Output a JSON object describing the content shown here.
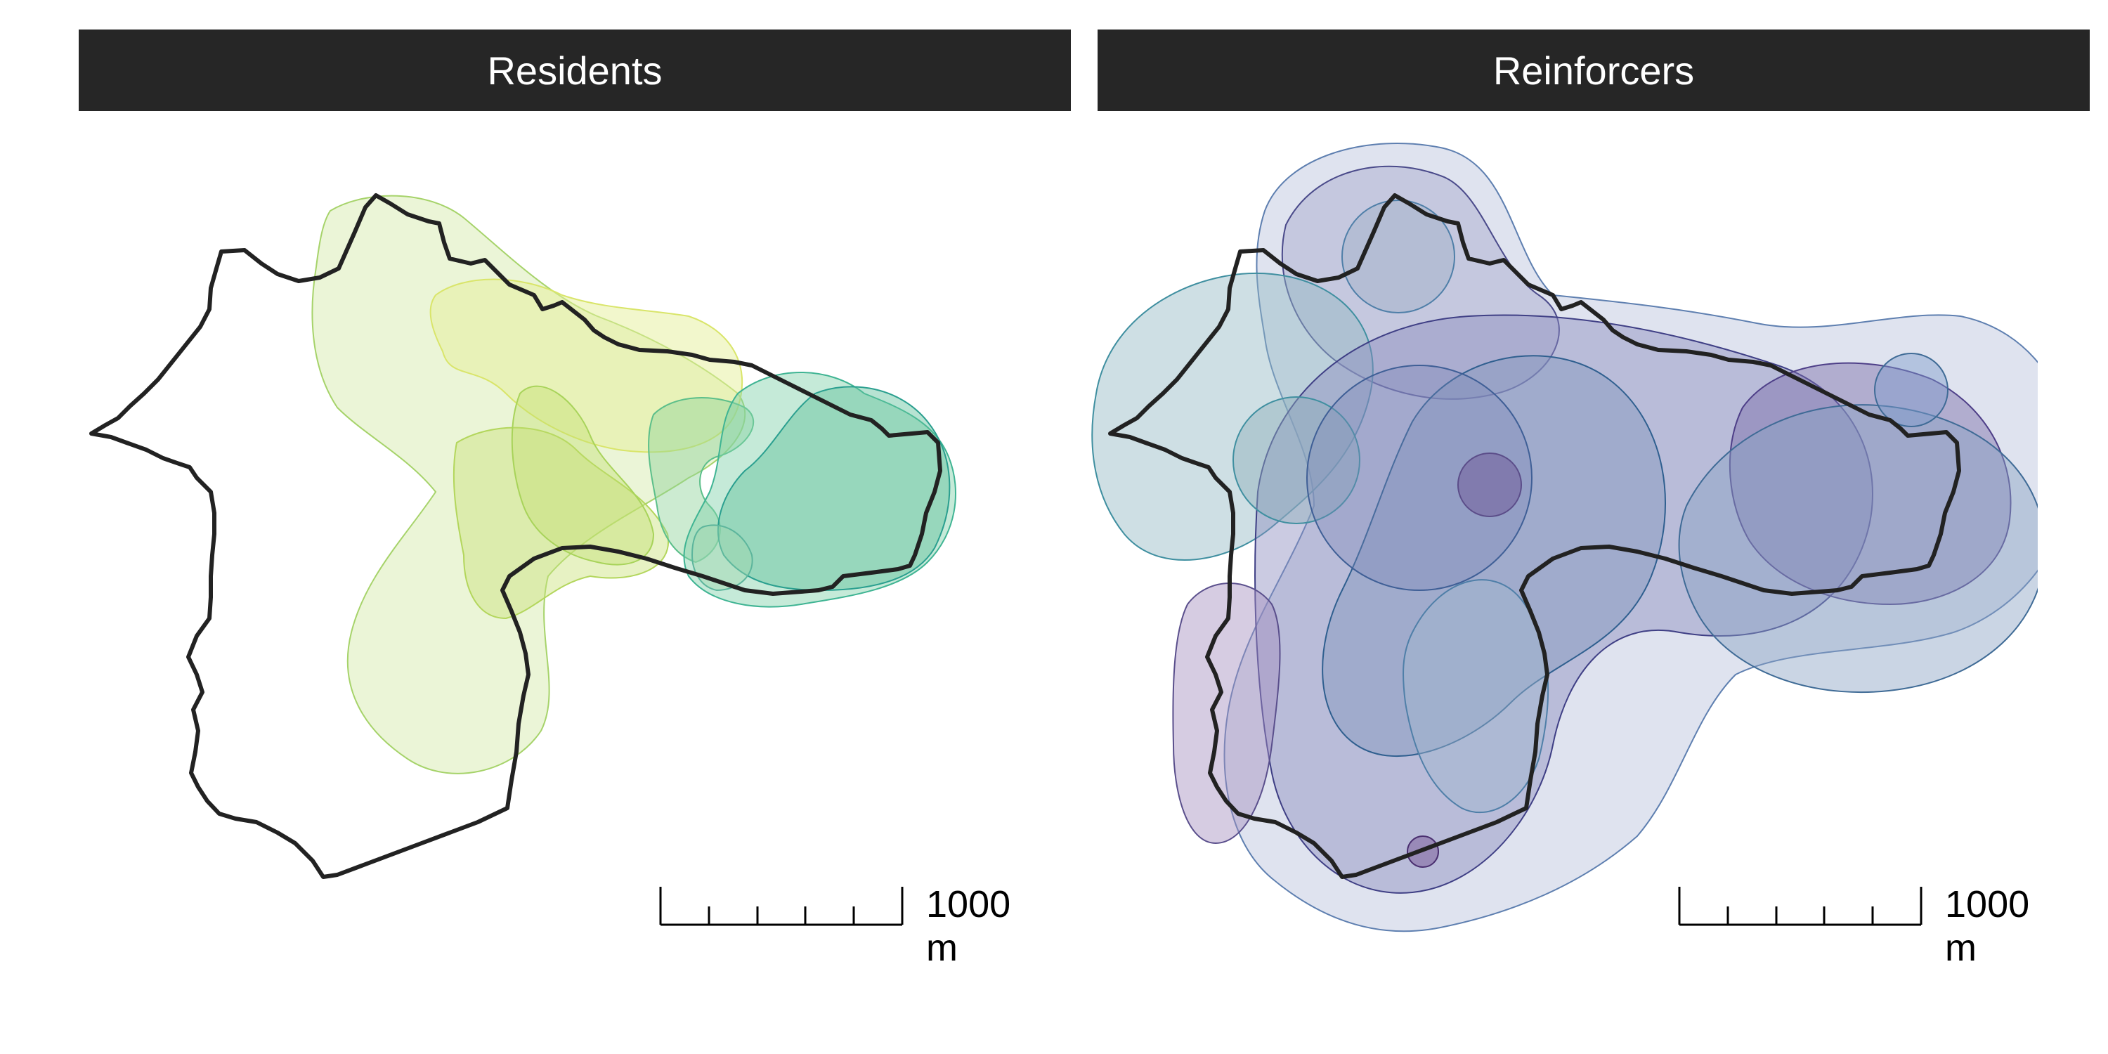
{
  "panels": [
    {
      "title": "Residents"
    },
    {
      "title": "Reinforcers"
    }
  ],
  "scalebar": {
    "label": "1000 m",
    "segments": 5
  },
  "colors": {
    "boundary": "#222222",
    "strip_bg": "#262626",
    "strip_text": "#ffffff",
    "residents_palette": [
      "#dbe87a",
      "#c2e06a",
      "#a7d66c",
      "#8ccf78",
      "#63c28c",
      "#3fb493",
      "#2a9f8f"
    ],
    "reinforcers_palette": [
      "#7f9ccc",
      "#4f7fa8",
      "#3f6b96",
      "#5a4f8c",
      "#6a3f87",
      "#5e8fae",
      "#46a3a0"
    ]
  }
}
